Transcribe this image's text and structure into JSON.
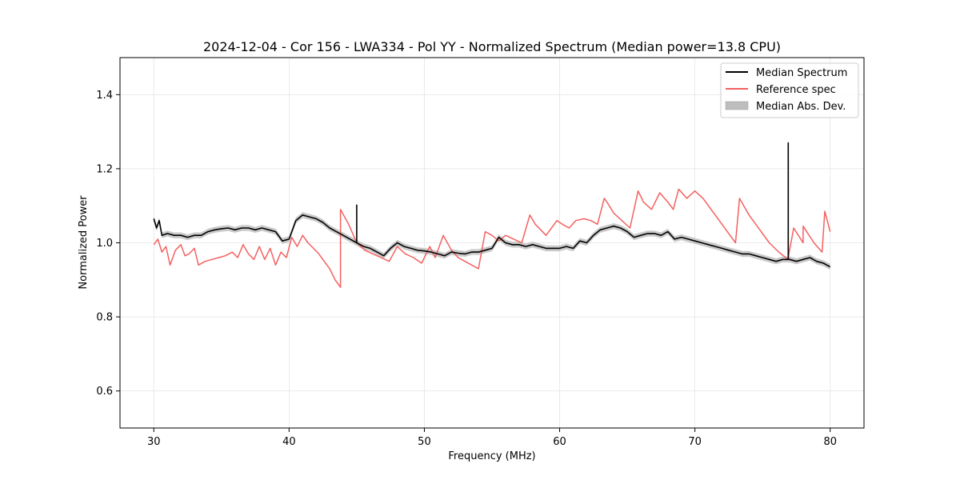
{
  "chart_data": {
    "type": "line",
    "title": "2024-12-04 - Cor 156 - LWA334 - Pol YY - Normalized Spectrum (Median power=13.8 CPU)",
    "xlabel": "Frequency (MHz)",
    "ylabel": "Normalized Power",
    "xlim": [
      27.5,
      82.5
    ],
    "ylim": [
      0.5,
      1.5
    ],
    "xticks": [
      30,
      40,
      50,
      60,
      70,
      80
    ],
    "yticks": [
      0.6,
      0.8,
      1.0,
      1.2,
      1.4
    ],
    "xtick_labels": [
      "30",
      "40",
      "50",
      "60",
      "70",
      "80"
    ],
    "ytick_labels": [
      "0.6",
      "0.8",
      "1.0",
      "1.2",
      "1.4"
    ],
    "grid": true,
    "legend_position": "top-right",
    "legend": [
      {
        "label": "Median Spectrum",
        "kind": "line",
        "color": "#000000"
      },
      {
        "label": "Reference spec",
        "kind": "line",
        "color": "#f46060"
      },
      {
        "label": "Median Abs. Dev.",
        "kind": "band",
        "color": "#bdbdbd"
      }
    ],
    "series": [
      {
        "name": "Median Spectrum",
        "color": "#000000",
        "x": [
          30.0,
          30.2,
          30.4,
          30.6,
          31.0,
          31.5,
          32.0,
          32.5,
          33.0,
          33.5,
          34.0,
          34.5,
          35.0,
          35.5,
          36.0,
          36.5,
          37.0,
          37.5,
          38.0,
          38.5,
          39.0,
          39.5,
          40.0,
          40.5,
          41.0,
          41.5,
          42.0,
          42.5,
          43.0,
          43.5,
          44.0,
          44.5,
          45.0,
          45.0,
          45.0,
          45.5,
          46.0,
          46.5,
          47.0,
          47.5,
          48.0,
          48.5,
          49.0,
          49.5,
          50.0,
          50.5,
          51.0,
          51.5,
          52.0,
          52.5,
          53.0,
          53.5,
          54.0,
          54.5,
          55.0,
          55.5,
          56.0,
          56.5,
          57.0,
          57.5,
          58.0,
          58.5,
          59.0,
          59.5,
          60.0,
          60.5,
          61.0,
          61.5,
          62.0,
          62.5,
          63.0,
          63.5,
          64.0,
          64.5,
          65.0,
          65.5,
          66.0,
          66.5,
          67.0,
          67.5,
          68.0,
          68.5,
          69.0,
          69.5,
          70.0,
          70.5,
          71.0,
          71.5,
          72.0,
          72.5,
          73.0,
          73.5,
          74.0,
          74.5,
          75.0,
          75.5,
          76.0,
          76.5,
          76.9,
          76.9,
          76.9,
          77.0,
          77.5,
          78.0,
          78.5,
          79.0,
          79.5,
          80.0
        ],
        "y": [
          1.065,
          1.04,
          1.06,
          1.02,
          1.025,
          1.02,
          1.02,
          1.015,
          1.02,
          1.02,
          1.03,
          1.035,
          1.038,
          1.04,
          1.035,
          1.04,
          1.04,
          1.035,
          1.04,
          1.035,
          1.03,
          1.005,
          1.01,
          1.06,
          1.075,
          1.07,
          1.065,
          1.055,
          1.04,
          1.03,
          1.02,
          1.01,
          1.0,
          1.102,
          1.0,
          0.99,
          0.985,
          0.975,
          0.965,
          0.985,
          1.0,
          0.99,
          0.985,
          0.98,
          0.978,
          0.975,
          0.97,
          0.965,
          0.975,
          0.972,
          0.97,
          0.975,
          0.975,
          0.98,
          0.985,
          1.015,
          1.0,
          0.995,
          0.995,
          0.99,
          0.995,
          0.99,
          0.985,
          0.985,
          0.985,
          0.99,
          0.985,
          1.005,
          1.0,
          1.02,
          1.035,
          1.04,
          1.045,
          1.04,
          1.03,
          1.015,
          1.02,
          1.025,
          1.025,
          1.02,
          1.03,
          1.01,
          1.015,
          1.01,
          1.005,
          1.0,
          0.995,
          0.99,
          0.985,
          0.98,
          0.975,
          0.97,
          0.97,
          0.965,
          0.96,
          0.955,
          0.95,
          0.955,
          0.955,
          1.27,
          0.955,
          0.955,
          0.95,
          0.955,
          0.96,
          0.95,
          0.945,
          0.935
        ]
      },
      {
        "name": "Reference spec",
        "color": "#f46060",
        "x": [
          30.0,
          30.3,
          30.6,
          30.9,
          31.2,
          31.6,
          32.0,
          32.3,
          32.6,
          33.0,
          33.3,
          33.8,
          34.3,
          34.8,
          35.3,
          35.8,
          36.2,
          36.6,
          37.0,
          37.4,
          37.8,
          38.2,
          38.6,
          39.0,
          39.4,
          39.8,
          40.2,
          40.6,
          41.0,
          41.4,
          41.8,
          42.2,
          42.6,
          43.0,
          43.4,
          43.8,
          43.8,
          44.4,
          45.0,
          45.6,
          46.2,
          46.8,
          47.4,
          48.0,
          48.6,
          49.2,
          49.8,
          50.4,
          50.8,
          51.4,
          52.0,
          52.5,
          53.0,
          53.5,
          54.0,
          54.5,
          55.0,
          55.5,
          56.0,
          56.6,
          57.2,
          57.8,
          58.2,
          59.0,
          59.8,
          60.2,
          60.7,
          61.2,
          61.8,
          62.3,
          62.8,
          63.3,
          63.5,
          64.0,
          64.6,
          65.2,
          65.8,
          66.2,
          66.8,
          67.4,
          68.0,
          68.4,
          68.8,
          69.4,
          70.0,
          70.6,
          71.2,
          71.8,
          72.4,
          73.0,
          73.3,
          73.3,
          74.0,
          74.8,
          75.5,
          76.2,
          76.9,
          76.9,
          76.9,
          77.3,
          78.0,
          78.0,
          78.8,
          79.4,
          79.6,
          80.0
        ],
        "y": [
          0.995,
          1.01,
          0.975,
          0.99,
          0.94,
          0.98,
          0.995,
          0.965,
          0.97,
          0.985,
          0.94,
          0.95,
          0.955,
          0.96,
          0.965,
          0.975,
          0.96,
          0.995,
          0.97,
          0.955,
          0.99,
          0.955,
          0.985,
          0.94,
          0.975,
          0.96,
          1.015,
          0.99,
          1.02,
          1.0,
          0.985,
          0.97,
          0.95,
          0.93,
          0.9,
          0.88,
          1.09,
          1.05,
          1.0,
          0.98,
          0.97,
          0.96,
          0.95,
          0.99,
          0.97,
          0.96,
          0.945,
          0.99,
          0.96,
          1.02,
          0.98,
          0.96,
          0.95,
          0.94,
          0.93,
          1.03,
          1.02,
          1.005,
          1.02,
          1.01,
          1.0,
          1.075,
          1.05,
          1.02,
          1.06,
          1.05,
          1.04,
          1.06,
          1.065,
          1.06,
          1.05,
          1.12,
          1.11,
          1.08,
          1.06,
          1.04,
          1.14,
          1.11,
          1.09,
          1.135,
          1.11,
          1.09,
          1.145,
          1.12,
          1.14,
          1.12,
          1.09,
          1.06,
          1.03,
          1.0,
          1.12,
          1.12,
          1.075,
          1.035,
          1.0,
          0.975,
          0.955,
          1.225,
          0.96,
          1.04,
          1.0,
          1.045,
          1.0,
          0.975,
          1.085,
          1.03
        ]
      }
    ],
    "band": {
      "name": "Median Abs. Dev.",
      "color": "#bdbdbd",
      "halfwidth": 0.008
    }
  }
}
